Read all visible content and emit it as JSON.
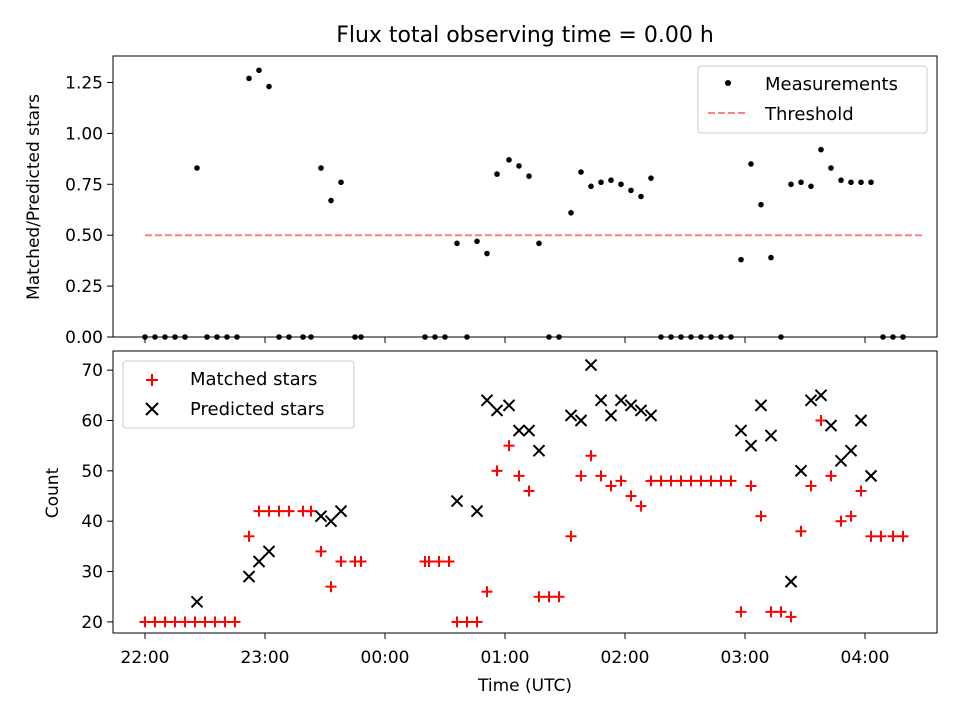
{
  "title": "Flux total observing time = 0.00 h",
  "chart_data": [
    {
      "type": "scatter",
      "ylabel": "Matched/Predicted stars",
      "ylim": [
        0,
        1.38
      ],
      "y_ticks": [
        {
          "v": 0.0,
          "label": "0.00"
        },
        {
          "v": 0.25,
          "label": "0.25"
        },
        {
          "v": 0.5,
          "label": "0.50"
        },
        {
          "v": 0.75,
          "label": "0.75"
        },
        {
          "v": 1.0,
          "label": "1.00"
        },
        {
          "v": 1.25,
          "label": "1.25"
        }
      ],
      "legend_position": "top-right",
      "legend": [
        {
          "label": "Measurements",
          "marker": "dot",
          "color": "#000000"
        },
        {
          "label": "Threshold",
          "marker": "dashed-line",
          "color": "#ff7f7f"
        }
      ],
      "threshold": {
        "y": 0.5,
        "x_start": "22:00",
        "x_end": "04:30"
      },
      "series": [
        {
          "name": "Measurements",
          "color": "#000000",
          "points": [
            [
              "22:00",
              0
            ],
            [
              "22:05",
              0
            ],
            [
              "22:10",
              0
            ],
            [
              "22:15",
              0
            ],
            [
              "22:20",
              0
            ],
            [
              "22:26",
              0.83
            ],
            [
              "22:31",
              0
            ],
            [
              "22:36",
              0
            ],
            [
              "22:41",
              0
            ],
            [
              "22:46",
              0
            ],
            [
              "22:52",
              1.27
            ],
            [
              "22:57",
              1.31
            ],
            [
              "23:02",
              1.23
            ],
            [
              "23:07",
              0
            ],
            [
              "23:12",
              0
            ],
            [
              "23:19",
              0
            ],
            [
              "23:23",
              0
            ],
            [
              "23:28",
              0.83
            ],
            [
              "23:33",
              0.67
            ],
            [
              "23:38",
              0.76
            ],
            [
              "23:45",
              0
            ],
            [
              "23:48",
              0
            ],
            [
              "00:20",
              0
            ],
            [
              "00:25",
              0
            ],
            [
              "00:30",
              0
            ],
            [
              "00:36",
              0.46
            ],
            [
              "00:41",
              0
            ],
            [
              "00:46",
              0.47
            ],
            [
              "00:51",
              0.41
            ],
            [
              "00:56",
              0.8
            ],
            [
              "01:02",
              0.87
            ],
            [
              "01:07",
              0.84
            ],
            [
              "01:12",
              0.79
            ],
            [
              "01:17",
              0.46
            ],
            [
              "01:22",
              0
            ],
            [
              "01:27",
              0
            ],
            [
              "01:33",
              0.61
            ],
            [
              "01:38",
              0.81
            ],
            [
              "01:43",
              0.74
            ],
            [
              "01:48",
              0.76
            ],
            [
              "01:53",
              0.77
            ],
            [
              "01:58",
              0.75
            ],
            [
              "02:03",
              0.72
            ],
            [
              "02:08",
              0.69
            ],
            [
              "02:13",
              0.78
            ],
            [
              "02:18",
              0
            ],
            [
              "02:23",
              0
            ],
            [
              "02:28",
              0
            ],
            [
              "02:33",
              0
            ],
            [
              "02:38",
              0
            ],
            [
              "02:43",
              0
            ],
            [
              "02:48",
              0
            ],
            [
              "02:53",
              0
            ],
            [
              "02:58",
              0.38
            ],
            [
              "03:03",
              0.85
            ],
            [
              "03:08",
              0.65
            ],
            [
              "03:13",
              0.39
            ],
            [
              "03:18",
              0
            ],
            [
              "03:23",
              0.75
            ],
            [
              "03:28",
              0.76
            ],
            [
              "03:33",
              0.74
            ],
            [
              "03:38",
              0.92
            ],
            [
              "03:43",
              0.83
            ],
            [
              "03:48",
              0.77
            ],
            [
              "03:53",
              0.76
            ],
            [
              "03:58",
              0.76
            ],
            [
              "04:03",
              0.76
            ],
            [
              "04:09",
              0
            ],
            [
              "04:14",
              0
            ],
            [
              "04:19",
              0
            ]
          ]
        }
      ]
    },
    {
      "type": "scatter",
      "xlabel": "Time (UTC)",
      "ylabel": "Count",
      "ylim": [
        17.8,
        73.8
      ],
      "y_ticks": [
        {
          "v": 20,
          "label": "20"
        },
        {
          "v": 30,
          "label": "30"
        },
        {
          "v": 40,
          "label": "40"
        },
        {
          "v": 50,
          "label": "50"
        },
        {
          "v": 60,
          "label": "60"
        },
        {
          "v": 70,
          "label": "70"
        }
      ],
      "x_range": [
        "21:44",
        "04:36"
      ],
      "x_ticks": [
        "22:00",
        "23:00",
        "00:00",
        "01:00",
        "02:00",
        "03:00",
        "04:00"
      ],
      "legend_position": "top-left",
      "legend": [
        {
          "label": "Matched stars",
          "marker": "plus",
          "color": "#ff0000"
        },
        {
          "label": "Predicted stars",
          "marker": "x",
          "color": "#000000"
        }
      ],
      "series": [
        {
          "name": "Matched stars",
          "color": "#ff0000",
          "points": [
            [
              "22:00",
              20
            ],
            [
              "22:05",
              20
            ],
            [
              "22:10",
              20
            ],
            [
              "22:15",
              20
            ],
            [
              "22:20",
              20
            ],
            [
              "22:25",
              20
            ],
            [
              "22:30",
              20
            ],
            [
              "22:35",
              20
            ],
            [
              "22:40",
              20
            ],
            [
              "22:45",
              20
            ],
            [
              "22:52",
              37
            ],
            [
              "22:57",
              42
            ],
            [
              "23:02",
              42
            ],
            [
              "23:07",
              42
            ],
            [
              "23:12",
              42
            ],
            [
              "23:19",
              42
            ],
            [
              "23:23",
              42
            ],
            [
              "23:28",
              34
            ],
            [
              "23:33",
              27
            ],
            [
              "23:38",
              32
            ],
            [
              "23:45",
              32
            ],
            [
              "23:48",
              32
            ],
            [
              "00:20",
              32
            ],
            [
              "00:22",
              32
            ],
            [
              "00:27",
              32
            ],
            [
              "00:32",
              32
            ],
            [
              "00:36",
              20
            ],
            [
              "00:41",
              20
            ],
            [
              "00:46",
              20
            ],
            [
              "00:51",
              26
            ],
            [
              "00:56",
              50
            ],
            [
              "01:02",
              55
            ],
            [
              "01:07",
              49
            ],
            [
              "01:12",
              46
            ],
            [
              "01:17",
              25
            ],
            [
              "01:22",
              25
            ],
            [
              "01:27",
              25
            ],
            [
              "01:33",
              37
            ],
            [
              "01:38",
              49
            ],
            [
              "01:43",
              53
            ],
            [
              "01:48",
              49
            ],
            [
              "01:53",
              47
            ],
            [
              "01:58",
              48
            ],
            [
              "02:03",
              45
            ],
            [
              "02:08",
              43
            ],
            [
              "02:13",
              48
            ],
            [
              "02:18",
              48
            ],
            [
              "02:23",
              48
            ],
            [
              "02:28",
              48
            ],
            [
              "02:33",
              48
            ],
            [
              "02:38",
              48
            ],
            [
              "02:43",
              48
            ],
            [
              "02:48",
              48
            ],
            [
              "02:53",
              48
            ],
            [
              "02:58",
              22
            ],
            [
              "03:03",
              47
            ],
            [
              "03:08",
              41
            ],
            [
              "03:13",
              22
            ],
            [
              "03:18",
              22
            ],
            [
              "03:23",
              21
            ],
            [
              "03:28",
              38
            ],
            [
              "03:33",
              47
            ],
            [
              "03:38",
              60
            ],
            [
              "03:43",
              49
            ],
            [
              "03:48",
              40
            ],
            [
              "03:53",
              41
            ],
            [
              "03:58",
              46
            ],
            [
              "04:03",
              37
            ],
            [
              "04:08",
              37
            ],
            [
              "04:14",
              37
            ],
            [
              "04:19",
              37
            ]
          ]
        },
        {
          "name": "Predicted stars",
          "color": "#000000",
          "points": [
            [
              "22:26",
              24
            ],
            [
              "22:52",
              29
            ],
            [
              "22:57",
              32
            ],
            [
              "23:02",
              34
            ],
            [
              "23:28",
              41
            ],
            [
              "23:33",
              40
            ],
            [
              "23:38",
              42
            ],
            [
              "00:36",
              44
            ],
            [
              "00:46",
              42
            ],
            [
              "00:51",
              64
            ],
            [
              "00:56",
              62
            ],
            [
              "01:02",
              63
            ],
            [
              "01:07",
              58
            ],
            [
              "01:12",
              58
            ],
            [
              "01:17",
              54
            ],
            [
              "01:33",
              61
            ],
            [
              "01:38",
              60
            ],
            [
              "01:43",
              71
            ],
            [
              "01:48",
              64
            ],
            [
              "01:53",
              61
            ],
            [
              "01:58",
              64
            ],
            [
              "02:03",
              63
            ],
            [
              "02:08",
              62
            ],
            [
              "02:13",
              61
            ],
            [
              "02:58",
              58
            ],
            [
              "03:03",
              55
            ],
            [
              "03:08",
              63
            ],
            [
              "03:13",
              57
            ],
            [
              "03:23",
              28
            ],
            [
              "03:28",
              50
            ],
            [
              "03:33",
              64
            ],
            [
              "03:38",
              65
            ],
            [
              "03:43",
              59
            ],
            [
              "03:48",
              52
            ],
            [
              "03:53",
              54
            ],
            [
              "03:58",
              60
            ],
            [
              "04:03",
              49
            ]
          ]
        }
      ]
    }
  ]
}
